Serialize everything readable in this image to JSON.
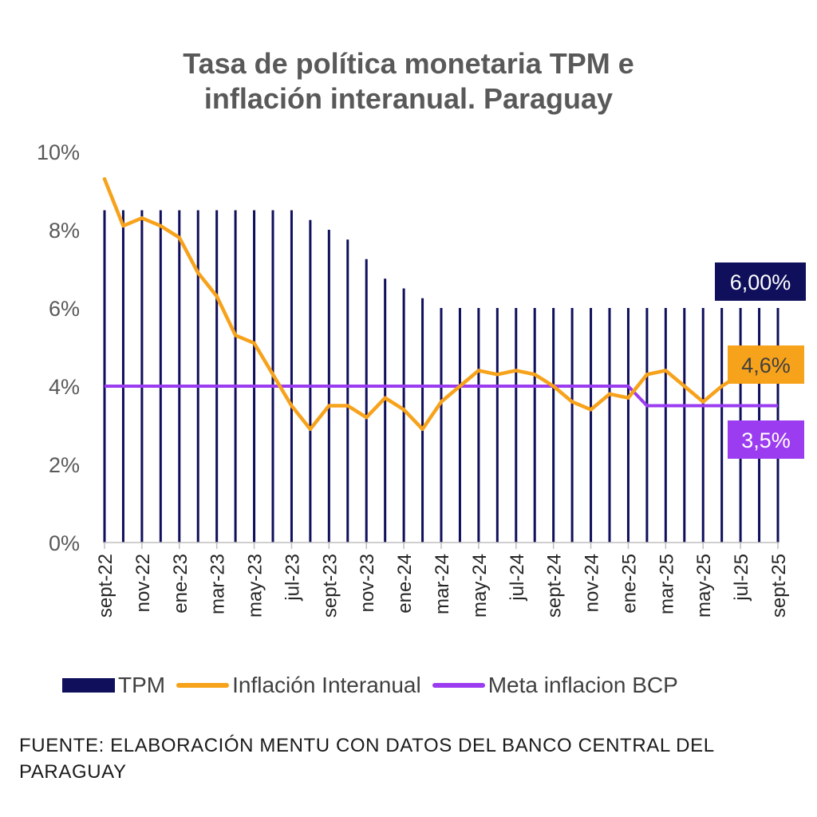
{
  "title_lines": [
    "Tasa de política monetaria TPM e",
    "inflación interanual. Paraguay"
  ],
  "source_note": "FUENTE: ELABORACIÓN MENTU CON DATOS DEL BANCO CENTRAL DEL PARAGUAY",
  "colors": {
    "tpm": "#0f0f5c",
    "inflation": "#f7a21b",
    "target": "#9b3cf0",
    "axis_text": "#595959"
  },
  "callouts": {
    "tpm": "6,00%",
    "inflation": "4,6%",
    "target": "3,5%"
  },
  "legend": [
    {
      "label": "TPM",
      "swatch": "bar",
      "color": "#0f0f5c"
    },
    {
      "label": "Inflación Interanual",
      "swatch": "line",
      "color": "#f7a21b"
    },
    {
      "label": "Meta inflacion BCP",
      "swatch": "line",
      "color": "#9b3cf0"
    }
  ],
  "chart_data": {
    "type": "bar+line",
    "ylim": [
      0,
      10
    ],
    "y_ticks": [
      "0%",
      "2%",
      "4%",
      "6%",
      "8%",
      "10%"
    ],
    "y_tick_values": [
      0,
      2,
      4,
      6,
      8,
      10
    ],
    "categories": [
      "sept-22",
      "oct-22",
      "nov-22",
      "dic-22",
      "ene-23",
      "feb-23",
      "mar-23",
      "abr-23",
      "may-23",
      "jun-23",
      "jul-23",
      "ago-23",
      "sept-23",
      "oct-23",
      "nov-23",
      "dic-23",
      "ene-24",
      "feb-24",
      "mar-24",
      "abr-24",
      "may-24",
      "jun-24",
      "jul-24",
      "ago-24",
      "sept-24",
      "oct-24",
      "nov-24",
      "dic-24",
      "ene-25",
      "feb-25",
      "mar-25",
      "abr-25",
      "may-25",
      "jun-25",
      "jul-25",
      "ago-25",
      "sept-25"
    ],
    "x_tick_labels": [
      "sept-22",
      "nov-22",
      "ene-23",
      "mar-23",
      "may-23",
      "jul-23",
      "sept-23",
      "nov-23",
      "ene-24",
      "mar-24",
      "may-24",
      "jul-24",
      "sept-24",
      "nov-24",
      "ene-25",
      "mar-25",
      "may-25",
      "jul-25",
      "sept-25"
    ],
    "series": [
      {
        "name": "TPM",
        "kind": "bar",
        "values": [
          8.5,
          8.5,
          8.5,
          8.5,
          8.5,
          8.5,
          8.5,
          8.5,
          8.5,
          8.5,
          8.5,
          8.25,
          8.0,
          7.75,
          7.25,
          6.75,
          6.5,
          6.25,
          6.0,
          6.0,
          6.0,
          6.0,
          6.0,
          6.0,
          6.0,
          6.0,
          6.0,
          6.0,
          6.0,
          6.0,
          6.0,
          6.0,
          6.0,
          6.0,
          6.0,
          6.0,
          6.0
        ]
      },
      {
        "name": "Inflación Interanual",
        "kind": "line",
        "values": [
          9.3,
          8.1,
          8.3,
          8.1,
          7.8,
          6.9,
          6.3,
          5.3,
          5.1,
          4.3,
          3.5,
          2.9,
          3.5,
          3.5,
          3.2,
          3.7,
          3.4,
          2.9,
          3.6,
          4.0,
          4.4,
          4.3,
          4.4,
          4.3,
          4.0,
          3.6,
          3.4,
          3.8,
          3.7,
          4.3,
          4.4,
          4.0,
          3.6,
          4.0,
          4.3,
          4.5,
          4.6
        ]
      },
      {
        "name": "Meta inflacion BCP",
        "kind": "line",
        "values": [
          4.0,
          4.0,
          4.0,
          4.0,
          4.0,
          4.0,
          4.0,
          4.0,
          4.0,
          4.0,
          4.0,
          4.0,
          4.0,
          4.0,
          4.0,
          4.0,
          4.0,
          4.0,
          4.0,
          4.0,
          4.0,
          4.0,
          4.0,
          4.0,
          4.0,
          4.0,
          4.0,
          4.0,
          4.0,
          3.5,
          3.5,
          3.5,
          3.5,
          3.5,
          3.5,
          3.5,
          3.5
        ]
      }
    ]
  }
}
